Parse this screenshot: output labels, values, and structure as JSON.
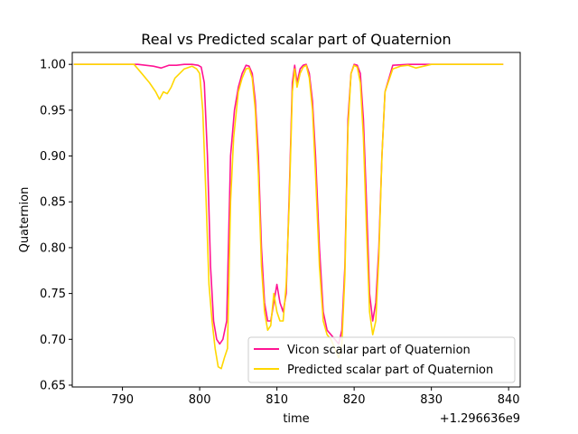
{
  "chart_data": {
    "type": "line",
    "title": "Real vs Predicted scalar part of Quaternion",
    "xlabel": "time",
    "ylabel": "Quaternion",
    "x_offset_label": "+1.296636e9",
    "xlim": [
      783.5,
      841.5
    ],
    "ylim": [
      0.648,
      1.013
    ],
    "xticks": [
      790,
      800,
      810,
      820,
      830,
      840
    ],
    "yticks": [
      0.65,
      0.7,
      0.75,
      0.8,
      0.85,
      0.9,
      0.95,
      1.0
    ],
    "ytick_labels": [
      "0.65",
      "0.70",
      "0.75",
      "0.80",
      "0.85",
      "0.90",
      "0.95",
      "1.00"
    ],
    "grid": false,
    "legend_position": "lower-right",
    "series": [
      {
        "name": "Vicon scalar part of Quaternion",
        "color": "#ff1493",
        "x": [
          783.7,
          788,
          792,
          793,
          794,
          795,
          796,
          797,
          798,
          799,
          799.8,
          800.2,
          800.6,
          801,
          801.4,
          801.8,
          802.2,
          802.6,
          803,
          803.5,
          804,
          804.5,
          805,
          805.5,
          806,
          806.4,
          806.8,
          807.2,
          807.6,
          808,
          808.4,
          808.8,
          809.2,
          809.6,
          810,
          810.4,
          810.8,
          811.2,
          811.6,
          812,
          812.3,
          812.6,
          813,
          813.4,
          813.8,
          814.2,
          814.6,
          815,
          815.5,
          816,
          816.5,
          817,
          817.5,
          818,
          818.4,
          818.8,
          819.2,
          819.6,
          820,
          820.4,
          820.8,
          821.2,
          821.6,
          822,
          822.4,
          822.8,
          823.2,
          823.6,
          824,
          825,
          827,
          830,
          835,
          839.3
        ],
        "values": [
          1.0,
          1.0,
          1.0,
          0.999,
          0.998,
          0.996,
          0.999,
          0.999,
          1.0,
          1.0,
          0.999,
          0.997,
          0.98,
          0.9,
          0.78,
          0.72,
          0.7,
          0.695,
          0.7,
          0.72,
          0.9,
          0.95,
          0.975,
          0.99,
          0.999,
          0.998,
          0.99,
          0.96,
          0.9,
          0.8,
          0.74,
          0.72,
          0.72,
          0.74,
          0.76,
          0.74,
          0.73,
          0.75,
          0.86,
          0.98,
          0.999,
          0.98,
          0.995,
          0.999,
          1.0,
          0.99,
          0.96,
          0.9,
          0.8,
          0.73,
          0.71,
          0.705,
          0.7,
          0.695,
          0.71,
          0.78,
          0.94,
          0.99,
          1.0,
          0.999,
          0.99,
          0.94,
          0.85,
          0.75,
          0.72,
          0.74,
          0.8,
          0.9,
          0.97,
          0.999,
          1.0,
          1.0,
          1.0,
          1.0
        ]
      },
      {
        "name": "Predicted scalar part of Quaternion",
        "color": "#ffd700",
        "x": [
          783.7,
          788,
          791.5,
          792.5,
          793.5,
          794.3,
          794.8,
          795.3,
          795.8,
          796.3,
          796.8,
          797.4,
          798,
          799,
          799.6,
          800,
          800.4,
          800.8,
          801.2,
          801.6,
          802,
          802.4,
          802.8,
          803.2,
          803.6,
          804,
          804.4,
          805,
          805.5,
          806,
          806.4,
          806.8,
          807.2,
          807.6,
          808,
          808.4,
          808.8,
          809.2,
          809.6,
          810,
          810.4,
          810.8,
          811.2,
          811.6,
          812,
          812.3,
          812.6,
          813,
          813.4,
          813.8,
          814.2,
          814.6,
          815,
          815.5,
          816,
          816.5,
          817,
          817.5,
          818,
          818.4,
          818.8,
          819.2,
          819.6,
          820,
          820.4,
          820.8,
          821.2,
          821.6,
          822,
          822.4,
          822.8,
          823.2,
          823.6,
          824,
          825,
          826,
          827,
          828,
          830,
          835,
          839.3
        ],
        "values": [
          1.0,
          1.0,
          1.0,
          0.99,
          0.98,
          0.97,
          0.962,
          0.97,
          0.968,
          0.975,
          0.985,
          0.99,
          0.995,
          0.998,
          0.995,
          0.99,
          0.95,
          0.86,
          0.76,
          0.72,
          0.69,
          0.67,
          0.668,
          0.68,
          0.69,
          0.85,
          0.92,
          0.97,
          0.985,
          0.995,
          0.996,
          0.985,
          0.95,
          0.88,
          0.78,
          0.73,
          0.71,
          0.715,
          0.75,
          0.73,
          0.72,
          0.72,
          0.76,
          0.85,
          0.97,
          0.995,
          0.975,
          0.99,
          0.997,
          0.999,
          0.985,
          0.95,
          0.88,
          0.78,
          0.72,
          0.705,
          0.7,
          0.69,
          0.68,
          0.695,
          0.77,
          0.93,
          0.99,
          0.999,
          0.997,
          0.98,
          0.92,
          0.82,
          0.73,
          0.705,
          0.72,
          0.79,
          0.9,
          0.97,
          0.995,
          0.998,
          0.999,
          0.996,
          1.0,
          1.0,
          1.0
        ]
      }
    ]
  }
}
